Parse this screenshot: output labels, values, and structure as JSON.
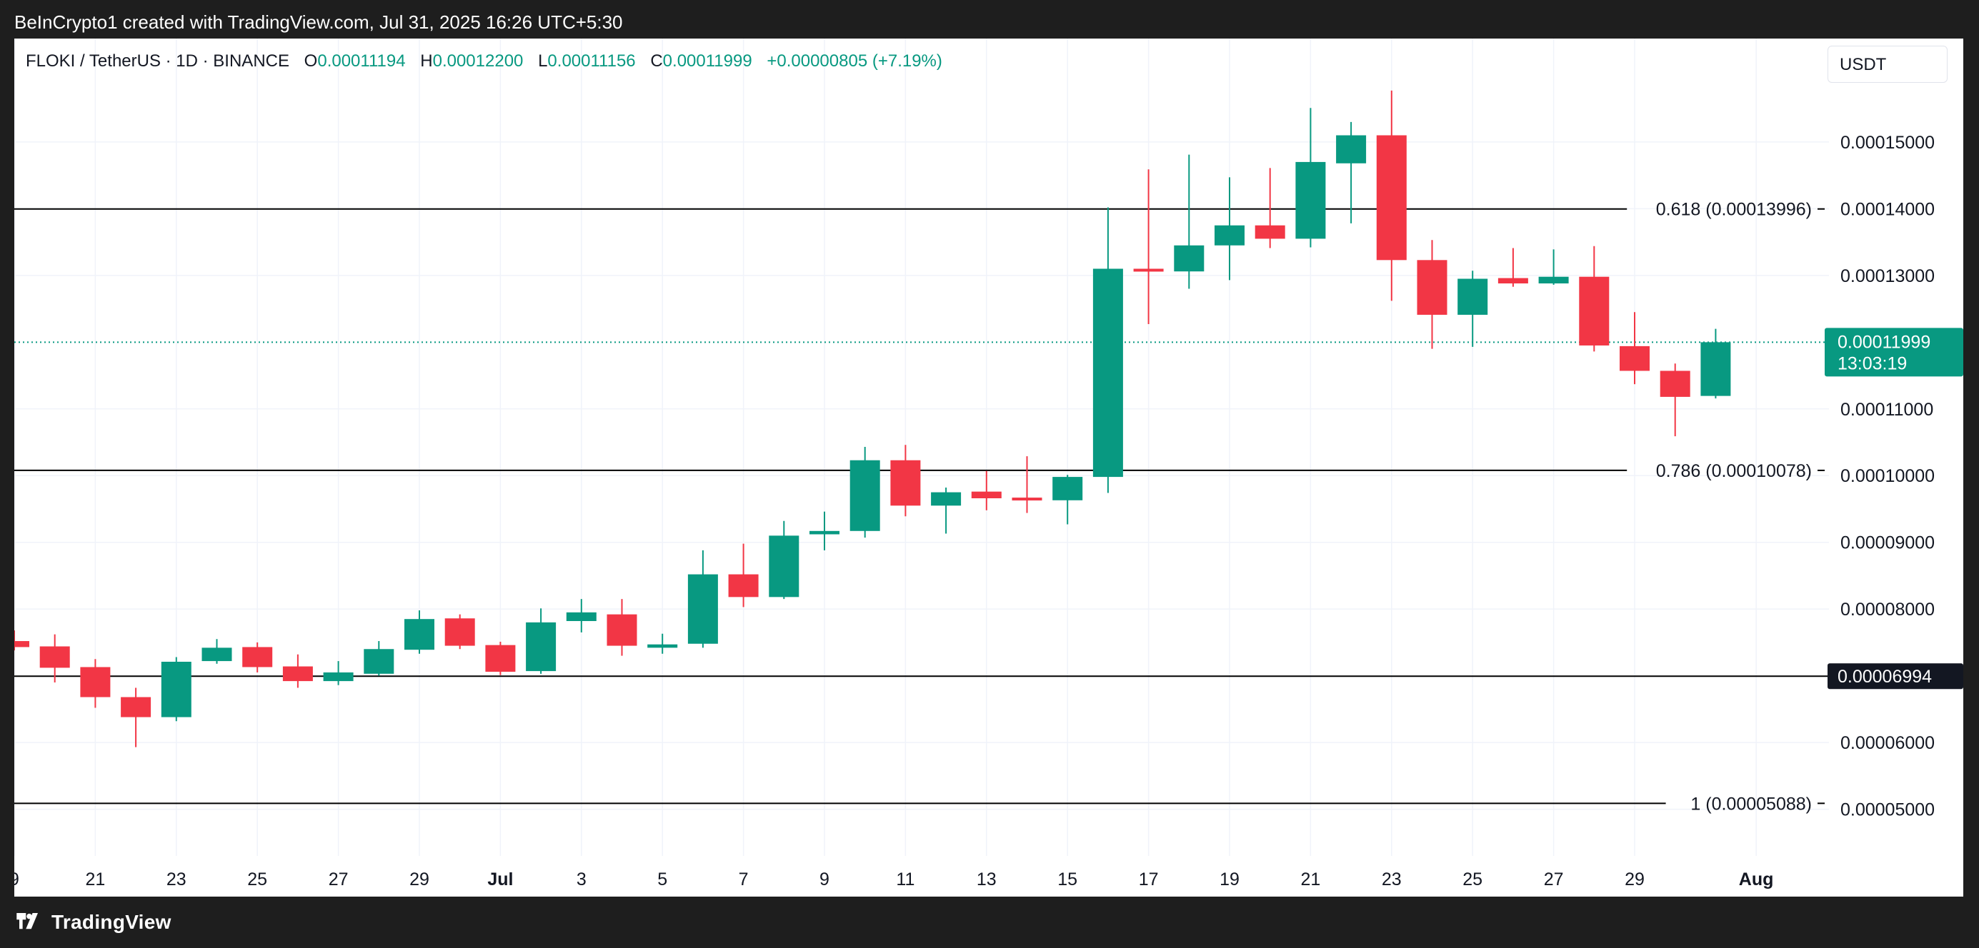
{
  "header": {
    "attribution": "BeInCrypto1 created with TradingView.com, Jul 31, 2025 16:26 UTC+5:30"
  },
  "legend": {
    "symbol": "FLOKI / TetherUS · 1D · BINANCE",
    "o_label": "O",
    "o_value": "0.00011194",
    "h_label": "H",
    "h_value": "0.00012200",
    "l_label": "L",
    "l_value": "0.00011156",
    "c_label": "C",
    "c_value": "0.00011999",
    "change": "+0.00000805 (+7.19%)"
  },
  "currency": "USDT",
  "footer": {
    "brand": "TradingView"
  },
  "colors": {
    "up": "#089981",
    "down": "#f23645",
    "grid": "#f0f3fa",
    "fib_line": "#000000",
    "last_price_bg": "#089981",
    "support_bg": "#131722"
  },
  "chart_data": {
    "type": "candlestick",
    "interval": "1D",
    "y_scale": "linear",
    "ylim": [
      4.3e-05,
      0.0001655
    ],
    "grid": true,
    "y_ticks": [
      {
        "value": 5e-05,
        "label": "0.00005000"
      },
      {
        "value": 6e-05,
        "label": "0.00006000"
      },
      {
        "value": 8e-05,
        "label": "0.00008000"
      },
      {
        "value": 9e-05,
        "label": "0.00009000"
      },
      {
        "value": 0.0001,
        "label": "0.00010000"
      },
      {
        "value": 0.00011,
        "label": "0.00011000"
      },
      {
        "value": 0.00013,
        "label": "0.00013000"
      },
      {
        "value": 0.00014,
        "label": "0.00014000"
      },
      {
        "value": 0.00015,
        "label": "0.00015000"
      }
    ],
    "x_ticks": [
      {
        "date": "2025-06-19",
        "label": "9"
      },
      {
        "date": "2025-06-21",
        "label": "21"
      },
      {
        "date": "2025-06-23",
        "label": "23"
      },
      {
        "date": "2025-06-25",
        "label": "25"
      },
      {
        "date": "2025-06-27",
        "label": "27"
      },
      {
        "date": "2025-06-29",
        "label": "29"
      },
      {
        "date": "2025-07-01",
        "label": "Jul"
      },
      {
        "date": "2025-07-03",
        "label": "3"
      },
      {
        "date": "2025-07-05",
        "label": "5"
      },
      {
        "date": "2025-07-07",
        "label": "7"
      },
      {
        "date": "2025-07-09",
        "label": "9"
      },
      {
        "date": "2025-07-11",
        "label": "11"
      },
      {
        "date": "2025-07-13",
        "label": "13"
      },
      {
        "date": "2025-07-15",
        "label": "15"
      },
      {
        "date": "2025-07-17",
        "label": "17"
      },
      {
        "date": "2025-07-19",
        "label": "19"
      },
      {
        "date": "2025-07-21",
        "label": "21"
      },
      {
        "date": "2025-07-23",
        "label": "23"
      },
      {
        "date": "2025-07-25",
        "label": "25"
      },
      {
        "date": "2025-07-27",
        "label": "27"
      },
      {
        "date": "2025-07-29",
        "label": "29"
      },
      {
        "date": "2025-08-01",
        "label": "Aug"
      }
    ],
    "candles": [
      {
        "date": "2025-06-19",
        "o": 7.52e-05,
        "h": 7.68e-05,
        "l": 7.38e-05,
        "c": 7.43e-05
      },
      {
        "date": "2025-06-20",
        "o": 7.44e-05,
        "h": 7.62e-05,
        "l": 6.9e-05,
        "c": 7.12e-05
      },
      {
        "date": "2025-06-21",
        "o": 7.13e-05,
        "h": 7.25e-05,
        "l": 6.52e-05,
        "c": 6.68e-05
      },
      {
        "date": "2025-06-22",
        "o": 6.68e-05,
        "h": 6.82e-05,
        "l": 5.93e-05,
        "c": 6.38e-05
      },
      {
        "date": "2025-06-23",
        "o": 6.38e-05,
        "h": 7.28e-05,
        "l": 6.32e-05,
        "c": 7.21e-05
      },
      {
        "date": "2025-06-24",
        "o": 7.22e-05,
        "h": 7.55e-05,
        "l": 7.18e-05,
        "c": 7.42e-05
      },
      {
        "date": "2025-06-25",
        "o": 7.43e-05,
        "h": 7.5e-05,
        "l": 7.05e-05,
        "c": 7.13e-05
      },
      {
        "date": "2025-06-26",
        "o": 7.14e-05,
        "h": 7.32e-05,
        "l": 6.82e-05,
        "c": 6.92e-05
      },
      {
        "date": "2025-06-27",
        "o": 6.92e-05,
        "h": 7.22e-05,
        "l": 6.86e-05,
        "c": 7.05e-05
      },
      {
        "date": "2025-06-28",
        "o": 7.03e-05,
        "h": 7.52e-05,
        "l": 7e-05,
        "c": 7.4e-05
      },
      {
        "date": "2025-06-29",
        "o": 7.39e-05,
        "h": 7.98e-05,
        "l": 7.33e-05,
        "c": 7.85e-05
      },
      {
        "date": "2025-06-30",
        "o": 7.86e-05,
        "h": 7.92e-05,
        "l": 7.4e-05,
        "c": 7.45e-05
      },
      {
        "date": "2025-07-01",
        "o": 7.46e-05,
        "h": 7.51e-05,
        "l": 7.01e-05,
        "c": 7.06e-05
      },
      {
        "date": "2025-07-02",
        "o": 7.07e-05,
        "h": 8.01e-05,
        "l": 7.03e-05,
        "c": 7.8e-05
      },
      {
        "date": "2025-07-03",
        "o": 7.82e-05,
        "h": 8.15e-05,
        "l": 7.65e-05,
        "c": 7.95e-05
      },
      {
        "date": "2025-07-04",
        "o": 7.92e-05,
        "h": 8.15e-05,
        "l": 7.3e-05,
        "c": 7.45e-05
      },
      {
        "date": "2025-07-05",
        "o": 7.42e-05,
        "h": 7.63e-05,
        "l": 7.33e-05,
        "c": 7.47e-05
      },
      {
        "date": "2025-07-06",
        "o": 7.48e-05,
        "h": 8.88e-05,
        "l": 7.42e-05,
        "c": 8.52e-05
      },
      {
        "date": "2025-07-07",
        "o": 8.52e-05,
        "h": 8.98e-05,
        "l": 8.03e-05,
        "c": 8.18e-05
      },
      {
        "date": "2025-07-08",
        "o": 8.18e-05,
        "h": 9.32e-05,
        "l": 8.15e-05,
        "c": 9.1e-05
      },
      {
        "date": "2025-07-09",
        "o": 9.12e-05,
        "h": 9.46e-05,
        "l": 8.88e-05,
        "c": 9.17e-05
      },
      {
        "date": "2025-07-10",
        "o": 9.17e-05,
        "h": 0.0001043,
        "l": 9.07e-05,
        "c": 0.0001023
      },
      {
        "date": "2025-07-11",
        "o": 0.0001023,
        "h": 0.0001046,
        "l": 9.39e-05,
        "c": 9.55e-05
      },
      {
        "date": "2025-07-12",
        "o": 9.55e-05,
        "h": 9.82e-05,
        "l": 9.13e-05,
        "c": 9.75e-05
      },
      {
        "date": "2025-07-13",
        "o": 9.76e-05,
        "h": 0.0001007,
        "l": 9.48e-05,
        "c": 9.66e-05
      },
      {
        "date": "2025-07-14",
        "o": 9.67e-05,
        "h": 0.0001029,
        "l": 9.44e-05,
        "c": 9.63e-05
      },
      {
        "date": "2025-07-15",
        "o": 9.63e-05,
        "h": 0.0001001,
        "l": 9.27e-05,
        "c": 9.98e-05
      },
      {
        "date": "2025-07-16",
        "o": 9.98e-05,
        "h": 0.0001402,
        "l": 9.74e-05,
        "c": 0.000131
      },
      {
        "date": "2025-07-17",
        "o": 0.000131,
        "h": 0.0001459,
        "l": 0.0001227,
        "c": 0.0001306
      },
      {
        "date": "2025-07-18",
        "o": 0.0001306,
        "h": 0.0001481,
        "l": 0.000128,
        "c": 0.0001345
      },
      {
        "date": "2025-07-19",
        "o": 0.0001345,
        "h": 0.0001447,
        "l": 0.0001293,
        "c": 0.0001375
      },
      {
        "date": "2025-07-20",
        "o": 0.0001375,
        "h": 0.0001461,
        "l": 0.0001341,
        "c": 0.0001355
      },
      {
        "date": "2025-07-21",
        "o": 0.0001355,
        "h": 0.0001551,
        "l": 0.0001342,
        "c": 0.000147
      },
      {
        "date": "2025-07-22",
        "o": 0.0001468,
        "h": 0.000153,
        "l": 0.0001378,
        "c": 0.000151
      },
      {
        "date": "2025-07-23",
        "o": 0.000151,
        "h": 0.0001577,
        "l": 0.0001262,
        "c": 0.0001323
      },
      {
        "date": "2025-07-24",
        "o": 0.0001323,
        "h": 0.0001353,
        "l": 0.000119,
        "c": 0.0001241
      },
      {
        "date": "2025-07-25",
        "o": 0.0001241,
        "h": 0.0001307,
        "l": 0.0001193,
        "c": 0.0001295
      },
      {
        "date": "2025-07-26",
        "o": 0.0001296,
        "h": 0.0001341,
        "l": 0.0001283,
        "c": 0.0001288
      },
      {
        "date": "2025-07-27",
        "o": 0.0001288,
        "h": 0.0001339,
        "l": 0.0001286,
        "c": 0.0001298
      },
      {
        "date": "2025-07-28",
        "o": 0.0001298,
        "h": 0.0001344,
        "l": 0.0001186,
        "c": 0.0001195
      },
      {
        "date": "2025-07-29",
        "o": 0.0001194,
        "h": 0.0001245,
        "l": 0.0001137,
        "c": 0.0001157
      },
      {
        "date": "2025-07-30",
        "o": 0.0001157,
        "h": 0.0001168,
        "l": 0.0001059,
        "c": 0.0001118
      },
      {
        "date": "2025-07-31",
        "o": 0.00011194,
        "h": 0.000122,
        "l": 0.00011156,
        "c": 0.00011999
      }
    ],
    "fib_levels": [
      {
        "value": 0.00013996,
        "label": "0.618 (0.00013996)"
      },
      {
        "value": 0.00010078,
        "label": "0.786 (0.00010078)"
      },
      {
        "value": 5.088e-05,
        "label": "1 (0.00005088)"
      }
    ],
    "support_level": {
      "value": 6.994e-05,
      "label": "0.00006994"
    },
    "last_price": {
      "value": 0.00011999,
      "label": "0.00011999",
      "countdown": "13:03:19"
    }
  }
}
